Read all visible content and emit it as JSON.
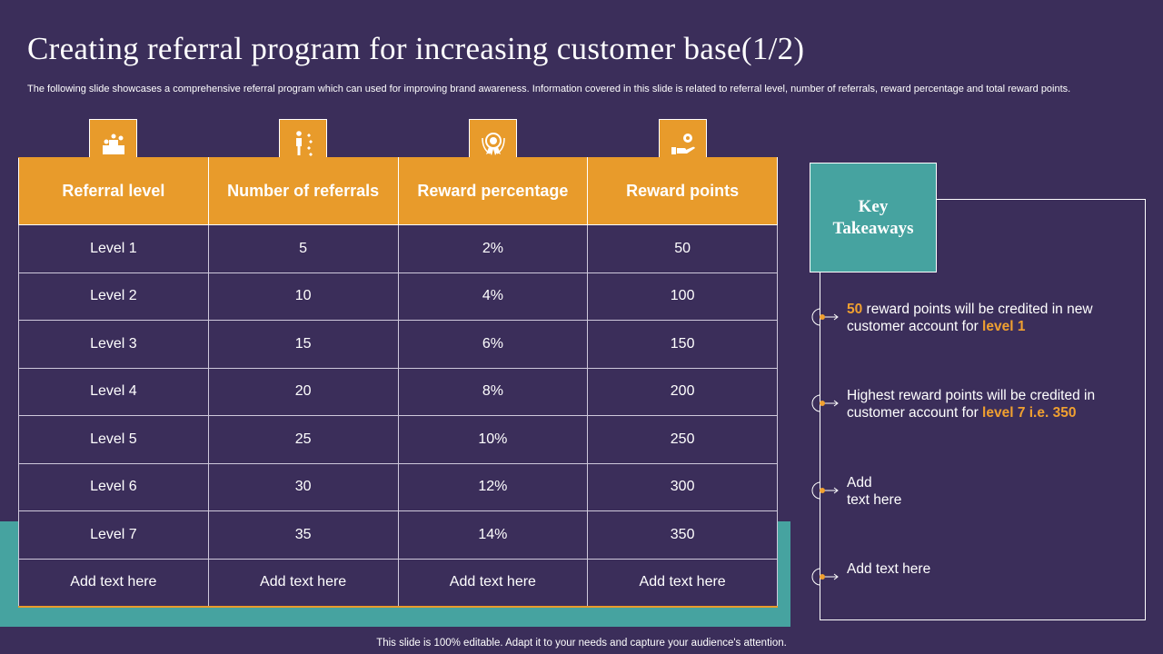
{
  "title": "Creating referral program for increasing customer base(1/2)",
  "subtitle": "The following slide showcases a comprehensive referral program which can used for improving brand awareness. Information covered in this slide is related to referral level, number of referrals, reward percentage and total reward points.",
  "icons": [
    "podium-icon",
    "person-steps-icon",
    "award-badge-icon",
    "hand-gear-icon"
  ],
  "table": {
    "headers": [
      "Referral level",
      "Number of referrals",
      "Reward percentage",
      "Reward points"
    ],
    "rows": [
      [
        "Level 1",
        "5",
        "2%",
        "50"
      ],
      [
        "Level 2",
        "10",
        "4%",
        "100"
      ],
      [
        "Level 3",
        "15",
        "6%",
        "150"
      ],
      [
        "Level 4",
        "20",
        "8%",
        "200"
      ],
      [
        "Level 5",
        "25",
        "10%",
        "250"
      ],
      [
        "Level 6",
        "30",
        "12%",
        "300"
      ],
      [
        "Level 7",
        "35",
        "14%",
        "350"
      ],
      [
        "Add text here",
        "Add text here",
        "Add text here",
        "Add text here"
      ]
    ]
  },
  "key_takeaways": {
    "heading_line1": "Key",
    "heading_line2": "Takeaways",
    "item1": {
      "hl1": "50",
      "text1": " reward points will be credited in new customer account for ",
      "hl2": "level 1"
    },
    "item2": {
      "text1": "Highest reward points will be credited in customer account for ",
      "hl1": "level 7 i.e. 350"
    },
    "item3_line1": "Add",
    "item3_line2": "text here",
    "item4": "Add text here"
  },
  "footer": "This slide is 100% editable. Adapt it to your needs and capture your audience's attention.",
  "colors": {
    "background": "#3b2e5a",
    "accent_orange": "#e89b2b",
    "teal": "#46a3a0"
  }
}
